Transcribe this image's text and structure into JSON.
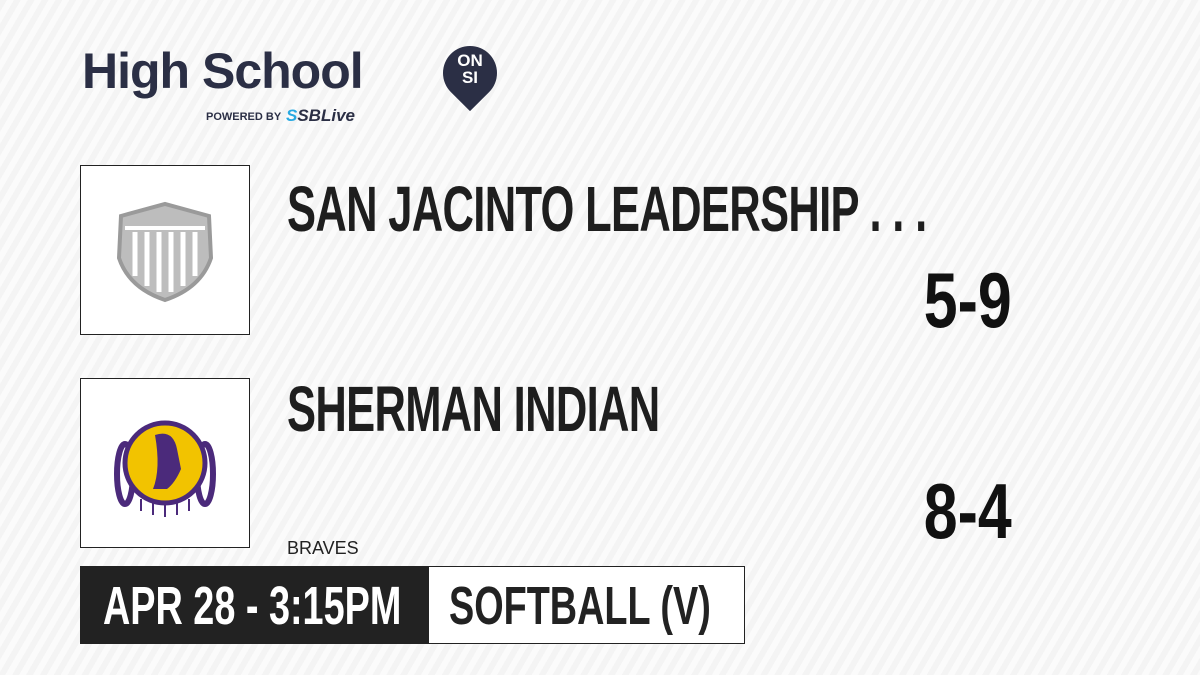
{
  "brand": {
    "title": "High School",
    "badge_line1": "ON",
    "badge_line2": "SI",
    "powered_by": "POWERED BY",
    "partner_prefix": "S",
    "partner": "SBLive"
  },
  "teams": [
    {
      "name": "SAN JACINTO LEADERSHIP . . .",
      "record": "5-9",
      "logo": "generic-shield-icon"
    },
    {
      "name": "SHERMAN INDIAN",
      "record": "8-4",
      "mascot": "BRAVES",
      "logo": "braves-mascot-logo"
    }
  ],
  "game": {
    "datetime": "APR 28 - 3:15PM",
    "sport": "SOFTBALL (V)"
  },
  "colors": {
    "brand_navy": "#2b2f45",
    "partner_blue": "#29a9e1",
    "dark": "#222222",
    "logo_purple": "#4b2a7b",
    "logo_gold": "#f2c300"
  }
}
